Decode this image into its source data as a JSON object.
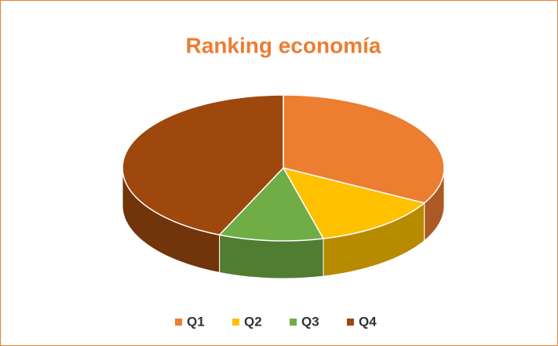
{
  "chart_data": {
    "type": "pie",
    "title": "Ranking economía",
    "categories": [
      "Q1",
      "Q2",
      "Q3",
      "Q4"
    ],
    "values": [
      33,
      13,
      10.5,
      43.5
    ],
    "colors": [
      "#ED7D31",
      "#FFC000",
      "#70AD47",
      "#9E480E"
    ],
    "legend": "bottom"
  }
}
